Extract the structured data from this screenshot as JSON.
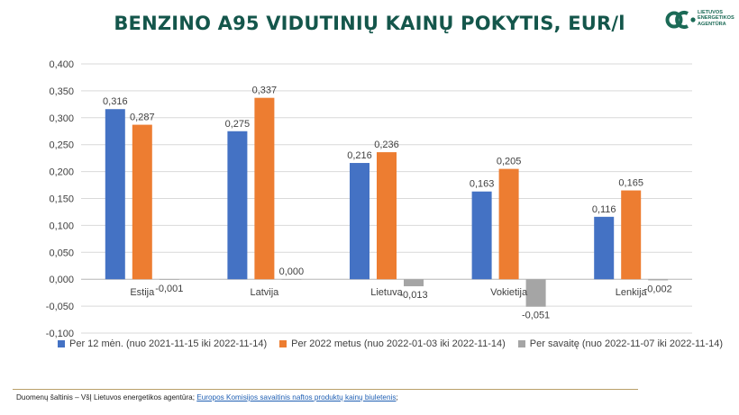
{
  "title": "BENZINO A95 VIDUTINIŲ KAINŲ POKYTIS, EUR/l",
  "logo": {
    "lines": [
      "LIETUVOS",
      "ENERGETIKOS",
      "AGENTŪRA"
    ]
  },
  "source": {
    "prefix": "Duomenų šaltinis – VšĮ Lietuvos energetikos agentūra; ",
    "link": "Europos Komisijos savaitinis naftos produktų kainų biuletenis",
    "suffix": ";"
  },
  "colors": {
    "title": "#14564b",
    "series1": "#4472c4",
    "series2": "#ed7d31",
    "series3": "#a5a5a5"
  },
  "chart_data": {
    "type": "bar",
    "categories": [
      "Estija",
      "Latvija",
      "Lietuva",
      "Vokietija",
      "Lenkija"
    ],
    "series": [
      {
        "name": "Per 12 mėn. (nuo 2021-11-15 iki 2022-11-14)",
        "values": [
          0.316,
          0.275,
          0.216,
          0.163,
          0.116
        ],
        "labels": [
          "0,316",
          "0,275",
          "0,216",
          "0,163",
          "0,116"
        ]
      },
      {
        "name": "Per 2022 metus (nuo 2022-01-03 iki 2022-11-14)",
        "values": [
          0.287,
          0.337,
          0.236,
          0.205,
          0.165
        ],
        "labels": [
          "0,287",
          "0,337",
          "0,236",
          "0,205",
          "0,165"
        ]
      },
      {
        "name": "Per savaitę (nuo 2022-11-07 iki 2022-11-14)",
        "values": [
          -0.001,
          0.0,
          -0.013,
          -0.051,
          -0.002
        ],
        "labels": [
          "-0,001",
          "0,000",
          "-0,013",
          "-0,051",
          "-0,002"
        ]
      }
    ],
    "ylim": [
      -0.1,
      0.4
    ],
    "yticks": [
      "-0,100",
      "-0,050",
      "0,000",
      "0,050",
      "0,100",
      "0,150",
      "0,200",
      "0,250",
      "0,300",
      "0,350",
      "0,400"
    ],
    "ytick_values": [
      -0.1,
      -0.05,
      0.0,
      0.05,
      0.1,
      0.15,
      0.2,
      0.25,
      0.3,
      0.35,
      0.4
    ],
    "grid": true,
    "legend_position": "bottom"
  }
}
